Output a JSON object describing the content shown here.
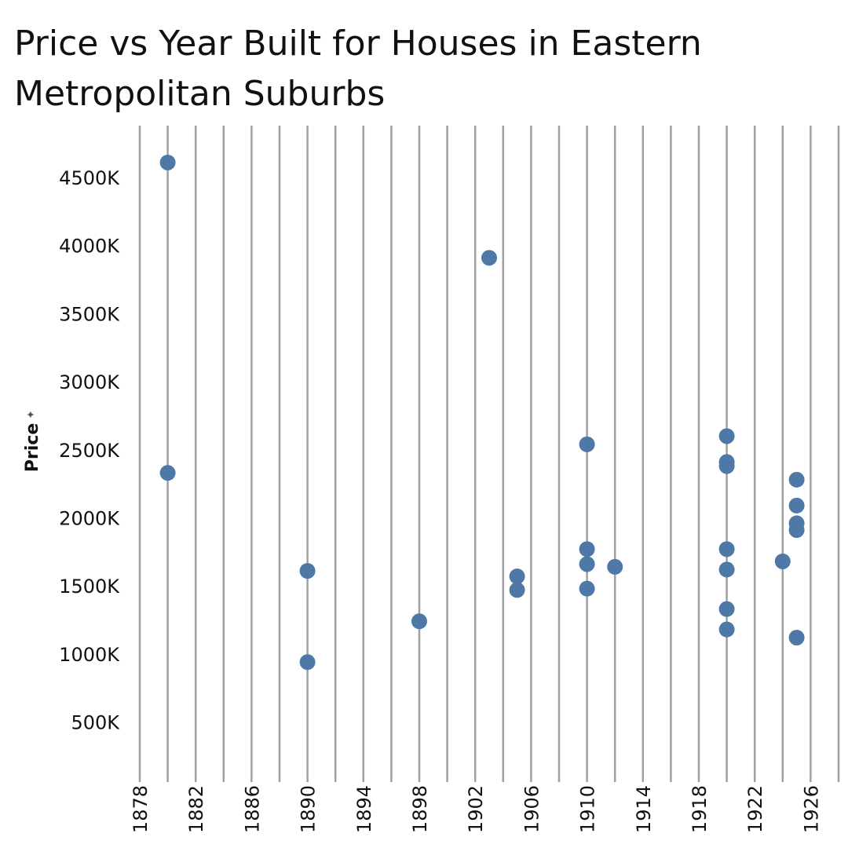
{
  "title": "Price vs Year Built for Houses in Eastern Metropolitan Suburbs",
  "chart_data": {
    "type": "scatter",
    "title": "Price vs Year Built for Houses in Eastern Metropolitan Suburbs",
    "xlabel": "",
    "ylabel": "Price",
    "xlim": [
      1878,
      1928
    ],
    "ylim": [
      140000,
      4950000
    ],
    "x_ticks": [
      1878,
      1882,
      1886,
      1890,
      1894,
      1898,
      1902,
      1906,
      1910,
      1914,
      1918,
      1922,
      1926
    ],
    "y_ticks": [
      500000,
      1000000,
      1500000,
      2000000,
      2500000,
      3000000,
      3500000,
      4000000,
      4500000
    ],
    "y_tick_labels": [
      "500K",
      "1000K",
      "1500K",
      "2000K",
      "2500K",
      "3000K",
      "3500K",
      "4000K",
      "4500K"
    ],
    "vertical_grid_years": [
      1878,
      1880,
      1882,
      1884,
      1886,
      1888,
      1890,
      1892,
      1894,
      1896,
      1898,
      1900,
      1902,
      1904,
      1906,
      1908,
      1910,
      1912,
      1914,
      1916,
      1918,
      1920,
      1922,
      1924,
      1926,
      1928
    ],
    "marker_color": "#4e79a7",
    "grid_color": "#a0a0a0",
    "points": [
      {
        "x": 1880,
        "y": 4610000
      },
      {
        "x": 1880,
        "y": 2330000
      },
      {
        "x": 1890,
        "y": 1610000
      },
      {
        "x": 1890,
        "y": 940000
      },
      {
        "x": 1898,
        "y": 1240000
      },
      {
        "x": 1903,
        "y": 3910000
      },
      {
        "x": 1905,
        "y": 1570000
      },
      {
        "x": 1905,
        "y": 1470000
      },
      {
        "x": 1910,
        "y": 2540000
      },
      {
        "x": 1910,
        "y": 1770000
      },
      {
        "x": 1910,
        "y": 1660000
      },
      {
        "x": 1910,
        "y": 1480000
      },
      {
        "x": 1912,
        "y": 1640000
      },
      {
        "x": 1920,
        "y": 2600000
      },
      {
        "x": 1920,
        "y": 2410000
      },
      {
        "x": 1920,
        "y": 2380000
      },
      {
        "x": 1920,
        "y": 1770000
      },
      {
        "x": 1920,
        "y": 1620000
      },
      {
        "x": 1920,
        "y": 1330000
      },
      {
        "x": 1920,
        "y": 1180000
      },
      {
        "x": 1924,
        "y": 1680000
      },
      {
        "x": 1925,
        "y": 2280000
      },
      {
        "x": 1925,
        "y": 2090000
      },
      {
        "x": 1925,
        "y": 1960000
      },
      {
        "x": 1925,
        "y": 1910000
      },
      {
        "x": 1925,
        "y": 1120000
      }
    ]
  }
}
